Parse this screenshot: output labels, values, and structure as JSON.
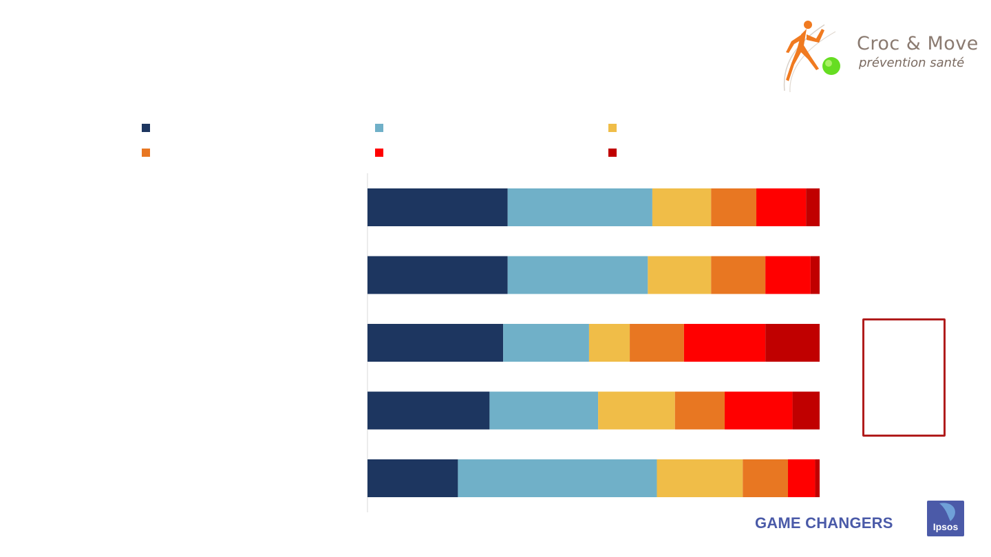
{
  "logo": {
    "title": "Croc & Move",
    "tagline": "prévention santé"
  },
  "footer": {
    "game_changers": "GAME CHANGERS",
    "ipsos": "Ipsos"
  },
  "colors": {
    "navy": "#1d3660",
    "lightblue": "#70b0c8",
    "yellow": "#f0bd48",
    "orange": "#e87722",
    "red": "#ff0000",
    "darkred": "#c00000",
    "highlight_border": "#b01c1c",
    "ipsos": "#4b5aa8"
  },
  "chart_data": {
    "type": "bar",
    "orientation": "horizontal",
    "stacked": true,
    "stack_total": 100,
    "xlim": [
      0,
      100
    ],
    "categories": [
      "",
      "",
      "",
      "",
      ""
    ],
    "series": [
      {
        "color": "#1d3660",
        "values": [
          31,
          31,
          30,
          27,
          20
        ]
      },
      {
        "color": "#70b0c8",
        "values": [
          32,
          31,
          19,
          24,
          44
        ]
      },
      {
        "color": "#f0bd48",
        "values": [
          13,
          14,
          9,
          17,
          19
        ]
      },
      {
        "color": "#e87722",
        "values": [
          10,
          12,
          12,
          11,
          10
        ]
      },
      {
        "color": "#ff0000",
        "values": [
          11,
          10,
          18,
          15,
          6
        ]
      },
      {
        "color": "#c00000",
        "values": [
          3,
          2,
          12,
          6,
          1
        ]
      }
    ]
  }
}
